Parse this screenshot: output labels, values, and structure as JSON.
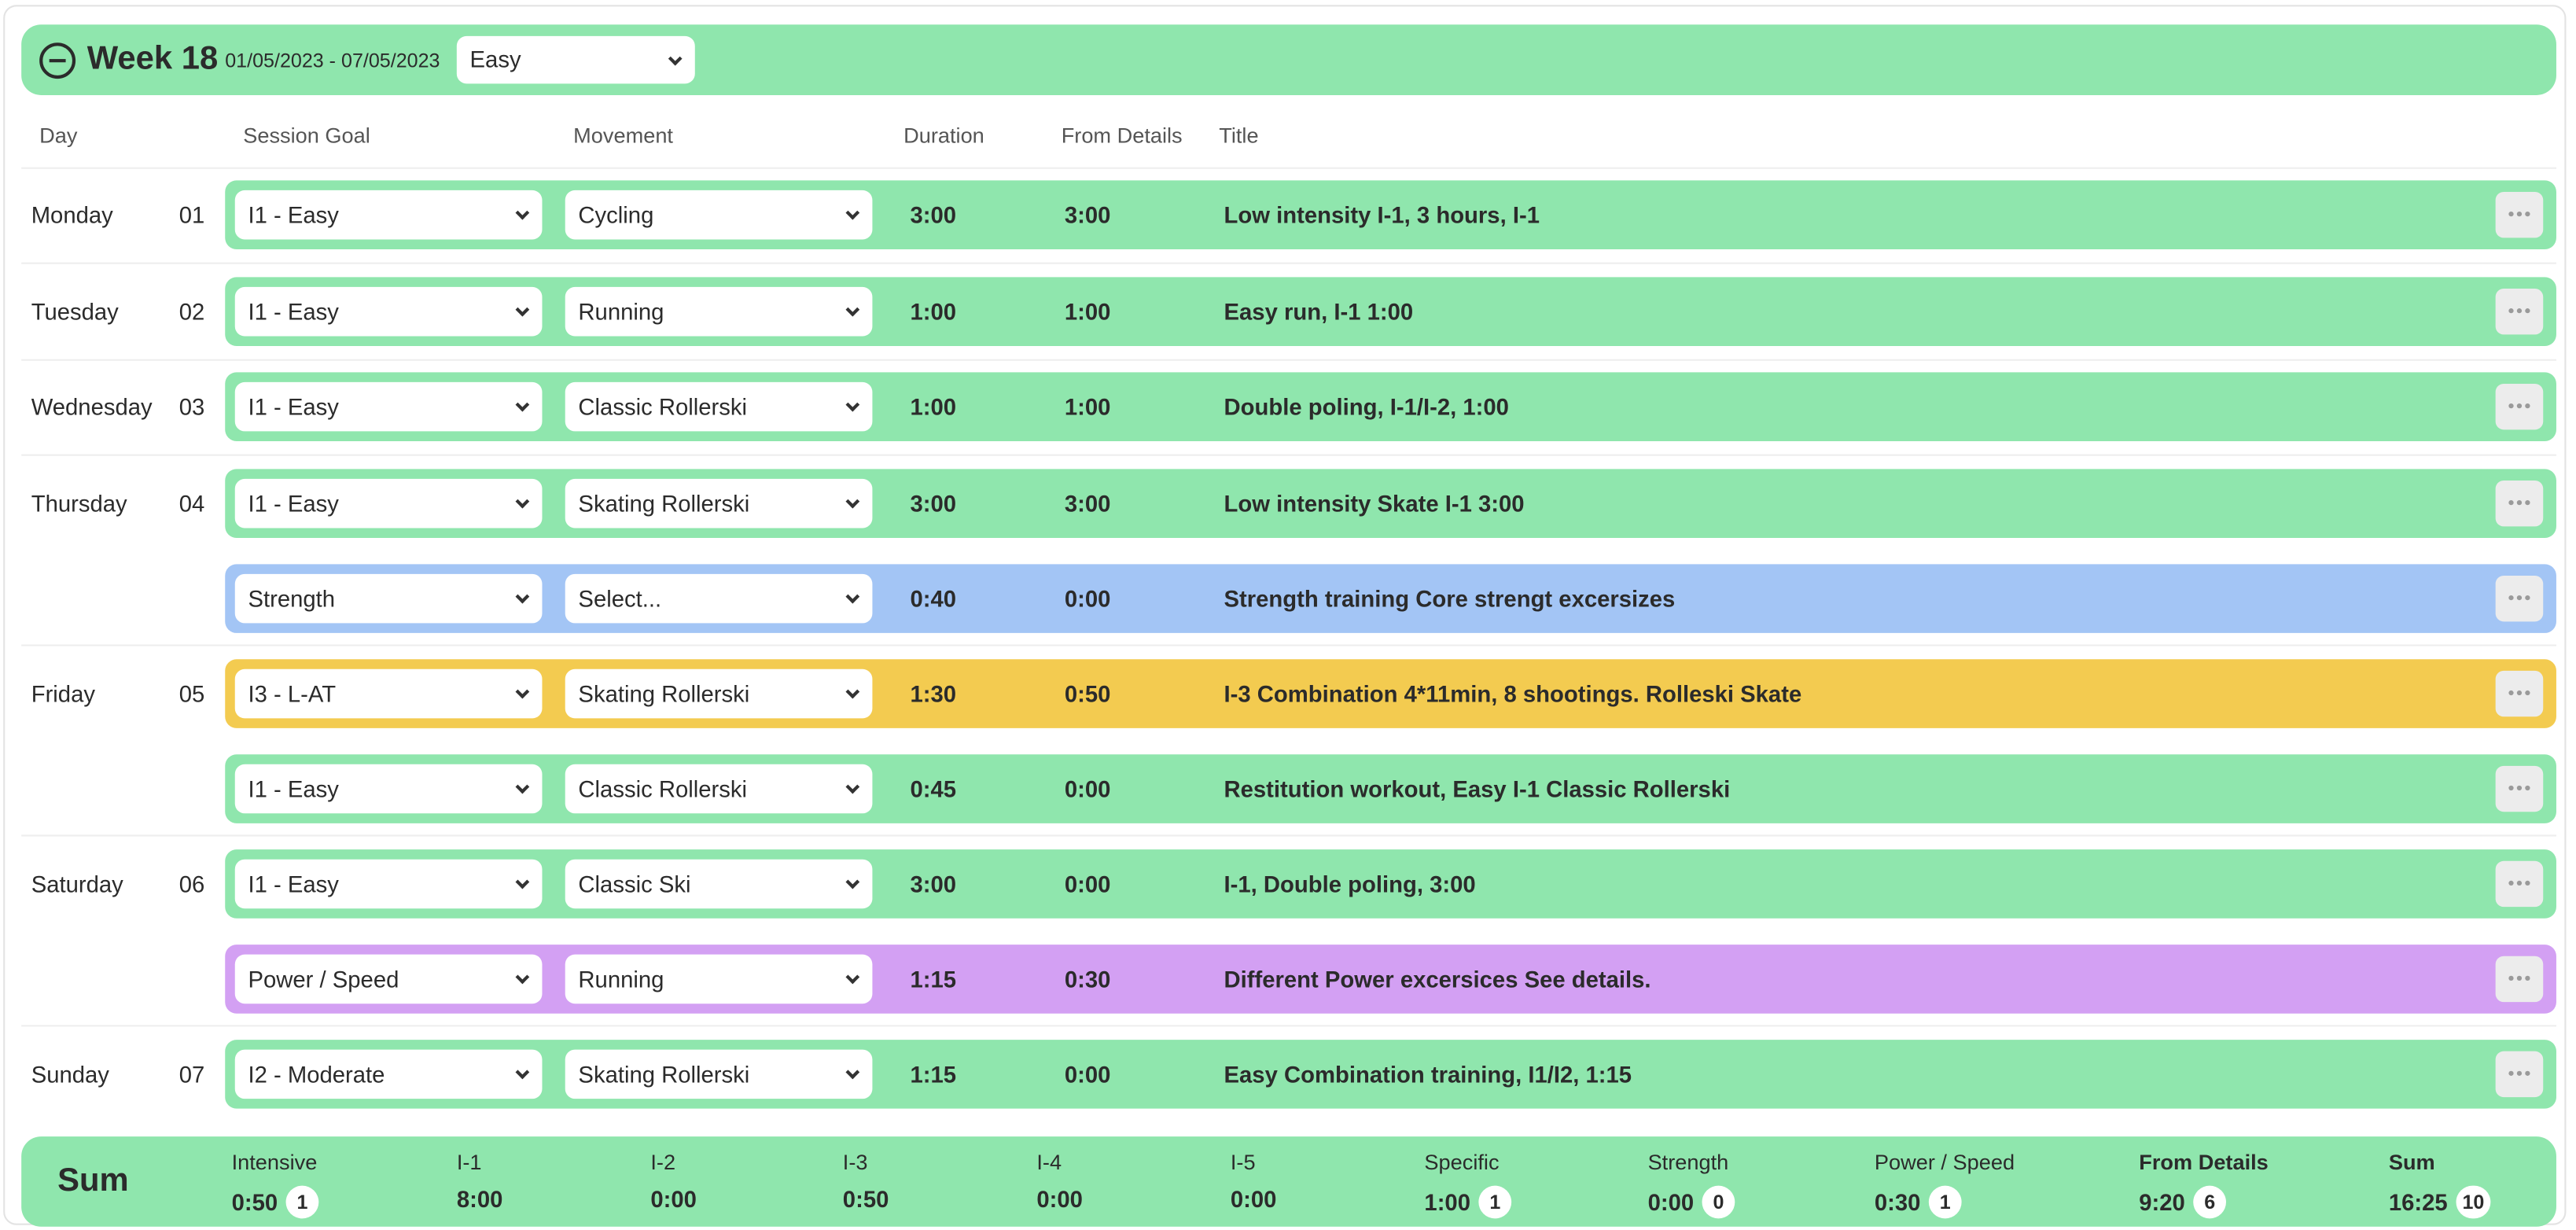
{
  "week": {
    "title": "Week 18",
    "date_range": "01/05/2023 - 07/05/2023",
    "intensity": "Easy"
  },
  "columns": {
    "day": "Day",
    "session_goal": "Session Goal",
    "movement": "Movement",
    "duration": "Duration",
    "from_details": "From Details",
    "title": "Title"
  },
  "colors": {
    "easy": "#8fe6ad",
    "strength": "#a3c5f5",
    "threshold": "#f3cb50",
    "power": "#d3a0f3"
  },
  "days": [
    {
      "name": "Monday",
      "num": "01",
      "sessions": [
        {
          "goal": "I1 - Easy",
          "movement": "Cycling",
          "duration": "3:00",
          "from_details": "3:00",
          "title": "Low intensity I-1, 3 hours, I-1",
          "color": "#8fe6ad"
        }
      ]
    },
    {
      "name": "Tuesday",
      "num": "02",
      "sessions": [
        {
          "goal": "I1 - Easy",
          "movement": "Running",
          "duration": "1:00",
          "from_details": "1:00",
          "title": "Easy run, I-1 1:00",
          "color": "#8fe6ad"
        }
      ]
    },
    {
      "name": "Wednesday",
      "num": "03",
      "sessions": [
        {
          "goal": "I1 - Easy",
          "movement": "Classic Rollerski",
          "duration": "1:00",
          "from_details": "1:00",
          "title": "Double poling, I-1/I-2, 1:00",
          "color": "#8fe6ad"
        }
      ]
    },
    {
      "name": "Thursday",
      "num": "04",
      "sessions": [
        {
          "goal": "I1 - Easy",
          "movement": "Skating Rollerski",
          "duration": "3:00",
          "from_details": "3:00",
          "title": "Low intensity Skate I-1 3:00",
          "color": "#8fe6ad"
        },
        {
          "goal": "Strength",
          "movement": "Select...",
          "duration": "0:40",
          "from_details": "0:00",
          "title": "Strength training Core strengt excersizes",
          "color": "#a3c5f5"
        }
      ]
    },
    {
      "name": "Friday",
      "num": "05",
      "sessions": [
        {
          "goal": "I3 - L-AT",
          "movement": "Skating Rollerski",
          "duration": "1:30",
          "from_details": "0:50",
          "title": "I-3 Combination 4*11min, 8 shootings. Rolleski Skate",
          "color": "#f3cb50"
        },
        {
          "goal": "I1 - Easy",
          "movement": "Classic Rollerski",
          "duration": "0:45",
          "from_details": "0:00",
          "title": "Restitution workout, Easy I-1 Classic Rollerski",
          "color": "#8fe6ad"
        }
      ]
    },
    {
      "name": "Saturday",
      "num": "06",
      "sessions": [
        {
          "goal": "I1 - Easy",
          "movement": "Classic Ski",
          "duration": "3:00",
          "from_details": "0:00",
          "title": "I-1, Double poling, 3:00",
          "color": "#8fe6ad"
        },
        {
          "goal": "Power / Speed",
          "movement": "Running",
          "duration": "1:15",
          "from_details": "0:30",
          "title": "Different Power excersices See details.",
          "color": "#d3a0f3"
        }
      ]
    },
    {
      "name": "Sunday",
      "num": "07",
      "sessions": [
        {
          "goal": "I2 - Moderate",
          "movement": "Skating Rollerski",
          "duration": "1:15",
          "from_details": "0:00",
          "title": "Easy Combination training, I1/I2, 1:15",
          "color": "#8fe6ad"
        }
      ]
    }
  ],
  "sum": {
    "title": "Sum",
    "stats": [
      {
        "label": "Intensive",
        "value": "0:50",
        "count": "1",
        "bold": false
      },
      {
        "label": "I-1",
        "value": "8:00",
        "count": null,
        "bold": false
      },
      {
        "label": "I-2",
        "value": "0:00",
        "count": null,
        "bold": false
      },
      {
        "label": "I-3",
        "value": "0:50",
        "count": null,
        "bold": false
      },
      {
        "label": "I-4",
        "value": "0:00",
        "count": null,
        "bold": false
      },
      {
        "label": "I-5",
        "value": "0:00",
        "count": null,
        "bold": false
      },
      {
        "label": "Specific",
        "value": "1:00",
        "count": "1",
        "bold": false
      },
      {
        "label": "Strength",
        "value": "0:00",
        "count": "0",
        "bold": false
      },
      {
        "label": "Power / Speed",
        "value": "0:30",
        "count": "1",
        "bold": false
      },
      {
        "label": "From Details",
        "value": "9:20",
        "count": "6",
        "bold": true
      },
      {
        "label": "Sum",
        "value": "16:25",
        "count": "10",
        "bold": true
      }
    ]
  }
}
